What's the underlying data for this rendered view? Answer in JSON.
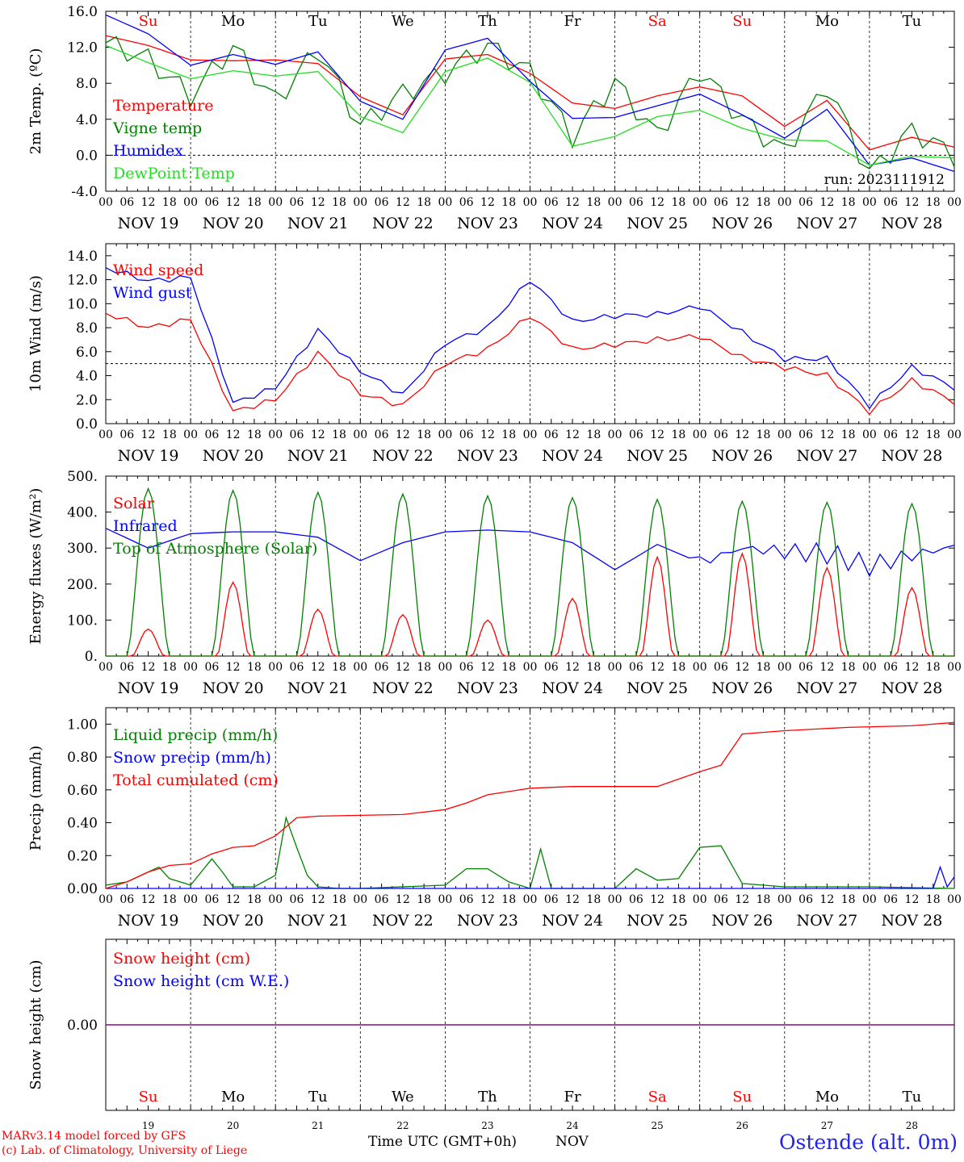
{
  "x_axis": {
    "title": "Time UTC (GMT+0h)",
    "month": "NOV",
    "days": [
      "NOV 19",
      "NOV 20",
      "NOV 21",
      "NOV 22",
      "NOV 23",
      "NOV 24",
      "NOV 25",
      "NOV 26",
      "NOV 27",
      "NOV 28"
    ],
    "day_numbers": [
      "19",
      "20",
      "21",
      "22",
      "23",
      "24",
      "25",
      "26",
      "27",
      "28"
    ],
    "weekdays": [
      "Su",
      "Mo",
      "Tu",
      "We",
      "Th",
      "Fr",
      "Sa",
      "Su",
      "Mo",
      "Tu"
    ],
    "weekday_colors": [
      "#ff0000",
      "#000000",
      "#000000",
      "#000000",
      "#000000",
      "#000000",
      "#ff0000",
      "#ff0000",
      "#000000",
      "#000000"
    ],
    "hour_ticks": [
      "00",
      "06",
      "12",
      "18"
    ],
    "final_tick": "00"
  },
  "credits": {
    "line1": "MARv3.14 model forced by GFS",
    "line2": "(c) Lab. of Climatology, University of Liege"
  },
  "station": "Ostende (alt. 0m)",
  "colors": {
    "red": "#ff0000",
    "green": "#008000",
    "blue": "#0000ff",
    "lightgreen": "#22dd22",
    "purple": "#800080"
  },
  "chart_data": [
    {
      "type": "line",
      "ylabel": "2m Temp. (ºC)",
      "ylim": [
        -4,
        16
      ],
      "yticks": [
        "-4.0",
        "0.0",
        "4.0",
        "8.0",
        "12.0",
        "16.0"
      ],
      "annotation": "run: 2023111912",
      "x_unit": "hours since NOV 19 00 UTC",
      "series": [
        {
          "name": "Temperature",
          "color": "#ff0000",
          "x": [
            0,
            12,
            24,
            36,
            48,
            60,
            72,
            84,
            96,
            108,
            120,
            132,
            144,
            156,
            168,
            180,
            192,
            204,
            216,
            228,
            240
          ],
          "values": [
            13.3,
            12.2,
            10.6,
            10.5,
            10.6,
            10.2,
            6.5,
            4.5,
            10.7,
            11.2,
            9.1,
            5.8,
            5.2,
            6.6,
            7.6,
            6.6,
            3.2,
            6.1,
            0.6,
            2.0,
            0.9
          ]
        },
        {
          "name": "Vigne temp",
          "color": "#008000",
          "x": [
            0,
            12,
            24,
            36,
            48,
            60,
            72,
            84,
            96,
            108,
            120,
            132,
            144,
            156,
            168,
            180,
            192,
            204,
            216,
            228,
            240
          ],
          "values": [
            12.5,
            10.7,
            6.6,
            12.1,
            6.0,
            11.8,
            3.3,
            6.9,
            9.2,
            12.2,
            9.3,
            2.1,
            8.2,
            2.2,
            9.5,
            4.0,
            0.4,
            7.8,
            -2.0,
            2.8,
            0.0
          ]
        },
        {
          "name": "Humidex",
          "color": "#0000ff",
          "x": [
            0,
            12,
            24,
            36,
            48,
            60,
            72,
            84,
            96,
            108,
            120,
            132,
            144,
            156,
            168,
            180,
            192,
            204,
            216,
            228,
            240
          ],
          "values": [
            15.6,
            13.5,
            10.0,
            11.2,
            10.1,
            11.5,
            6.0,
            4.0,
            11.7,
            13.0,
            8.2,
            4.1,
            4.2,
            5.5,
            6.8,
            4.5,
            1.9,
            5.1,
            -1.1,
            -0.3,
            -1.8
          ]
        },
        {
          "name": "DewPoint Temp",
          "color": "#22dd22",
          "x": [
            0,
            12,
            24,
            36,
            48,
            60,
            72,
            84,
            96,
            108,
            120,
            132,
            144,
            156,
            168,
            180,
            192,
            204,
            216,
            228,
            240
          ],
          "values": [
            12.2,
            10.3,
            8.5,
            9.4,
            8.8,
            9.3,
            4.3,
            2.5,
            9.3,
            10.8,
            8.1,
            1.0,
            2.1,
            4.3,
            5.0,
            3.0,
            1.7,
            1.6,
            -1.1,
            -0.1,
            -0.3
          ]
        }
      ]
    },
    {
      "type": "line",
      "ylabel": "10m Wind (m/s)",
      "ylim": [
        0,
        15
      ],
      "yticks": [
        "0.0",
        "2.0",
        "4.0",
        "6.0",
        "8.0",
        "10.0",
        "12.0",
        "14.0"
      ],
      "reference_line": 5,
      "x_unit": "hours since NOV 19 00 UTC",
      "series": [
        {
          "name": "Wind speed",
          "color": "#ff0000",
          "x": [
            0,
            12,
            24,
            36,
            48,
            60,
            72,
            84,
            96,
            108,
            120,
            132,
            144,
            156,
            168,
            180,
            192,
            204,
            216,
            228,
            240
          ],
          "values": [
            9.2,
            8.0,
            8.7,
            1.0,
            2.0,
            5.9,
            2.5,
            1.5,
            5.0,
            6.2,
            9.0,
            6.2,
            6.6,
            7.0,
            7.3,
            5.5,
            4.7,
            4.0,
            1.0,
            3.6,
            1.8
          ]
        },
        {
          "name": "Wind gust",
          "color": "#0000ff",
          "x": [
            0,
            12,
            24,
            36,
            48,
            60,
            72,
            84,
            96,
            108,
            120,
            132,
            144,
            156,
            168,
            180,
            192,
            204,
            216,
            228,
            240
          ],
          "values": [
            13.0,
            11.9,
            12.2,
            1.7,
            3.0,
            7.8,
            4.4,
            2.4,
            6.7,
            8.0,
            12.0,
            8.5,
            9.0,
            9.1,
            9.8,
            7.6,
            5.4,
            5.4,
            1.5,
            4.7,
            3.0
          ]
        }
      ]
    },
    {
      "type": "line",
      "ylabel": "Energy fluxes (W/m²)",
      "ylim": [
        0,
        500
      ],
      "yticks": [
        "0.",
        "100.",
        "200.",
        "300.",
        "400.",
        "500."
      ],
      "x_unit": "hours since NOV 19 00 UTC",
      "daily_peak_hour": 12,
      "series": [
        {
          "name": "Solar",
          "color": "#ff0000",
          "daily_peaks": [
            75,
            205,
            130,
            115,
            100,
            160,
            275,
            285,
            245,
            190
          ]
        },
        {
          "name": "Infrared",
          "color": "#0000ff",
          "x": [
            0,
            12,
            24,
            36,
            48,
            60,
            72,
            84,
            96,
            108,
            120,
            132,
            144,
            156,
            168,
            180,
            192,
            204,
            216,
            228,
            240
          ],
          "values": [
            355,
            300,
            340,
            345,
            345,
            330,
            265,
            315,
            345,
            350,
            345,
            315,
            240,
            310,
            260,
            300,
            290,
            285,
            250,
            280,
            305
          ]
        },
        {
          "name": "Top of Atmosphere (Solar)",
          "color": "#008000",
          "daily_peaks": [
            465,
            460,
            455,
            450,
            445,
            440,
            435,
            430,
            427,
            423
          ]
        }
      ]
    },
    {
      "type": "line",
      "ylabel": "Precip (mm/h)",
      "ylim": [
        0,
        1.1
      ],
      "yticks": [
        "0.00",
        "0.20",
        "0.40",
        "0.60",
        "0.80",
        "1.00"
      ],
      "x_unit": "hours since NOV 19 00 UTC",
      "series": [
        {
          "name": "Liquid precip (mm/h)",
          "color": "#008000",
          "x": [
            0,
            6,
            12,
            15,
            18,
            24,
            30,
            33,
            36,
            42,
            48,
            51,
            54,
            57,
            60,
            66,
            72,
            96,
            102,
            108,
            114,
            120,
            123,
            126,
            132,
            144,
            150,
            156,
            162,
            168,
            174,
            180,
            192,
            216,
            240
          ],
          "values": [
            0.02,
            0.04,
            0.1,
            0.13,
            0.06,
            0.02,
            0.18,
            0.1,
            0.01,
            0.01,
            0.08,
            0.43,
            0.25,
            0.08,
            0.01,
            0.0,
            0.0,
            0.02,
            0.12,
            0.12,
            0.04,
            0.0,
            0.24,
            0.0,
            0.0,
            0.0,
            0.12,
            0.05,
            0.06,
            0.25,
            0.26,
            0.03,
            0.01,
            0.01,
            0.0
          ]
        },
        {
          "name": "Snow precip (mm/h)",
          "color": "#0000ff",
          "x": [
            0,
            216,
            234,
            236,
            238,
            240
          ],
          "values": [
            0,
            0,
            0.0,
            0.13,
            0.01,
            0.07
          ]
        },
        {
          "name": "Total cumulated (cm)",
          "color": "#ff0000",
          "x": [
            0,
            6,
            12,
            18,
            24,
            30,
            36,
            42,
            48,
            54,
            60,
            84,
            96,
            102,
            108,
            114,
            120,
            132,
            156,
            168,
            174,
            180,
            192,
            210,
            228,
            240
          ],
          "values": [
            0.0,
            0.04,
            0.1,
            0.14,
            0.15,
            0.21,
            0.25,
            0.26,
            0.32,
            0.43,
            0.44,
            0.45,
            0.48,
            0.52,
            0.57,
            0.59,
            0.61,
            0.62,
            0.62,
            0.71,
            0.75,
            0.94,
            0.96,
            0.98,
            0.99,
            1.01
          ]
        }
      ]
    },
    {
      "type": "line",
      "ylabel": "Snow height (cm)",
      "ylim": [
        -1,
        1
      ],
      "yticks": [
        "0.00"
      ],
      "x_unit": "hours since NOV 19 00 UTC",
      "series": [
        {
          "name": "Snow height (cm)",
          "color": "#ff0000",
          "x": [
            0,
            240
          ],
          "values": [
            0,
            0
          ]
        },
        {
          "name": "Snow height (cm W.E.)",
          "color": "#0000ff",
          "x": [
            0,
            240
          ],
          "values": [
            0,
            0
          ]
        }
      ]
    }
  ]
}
